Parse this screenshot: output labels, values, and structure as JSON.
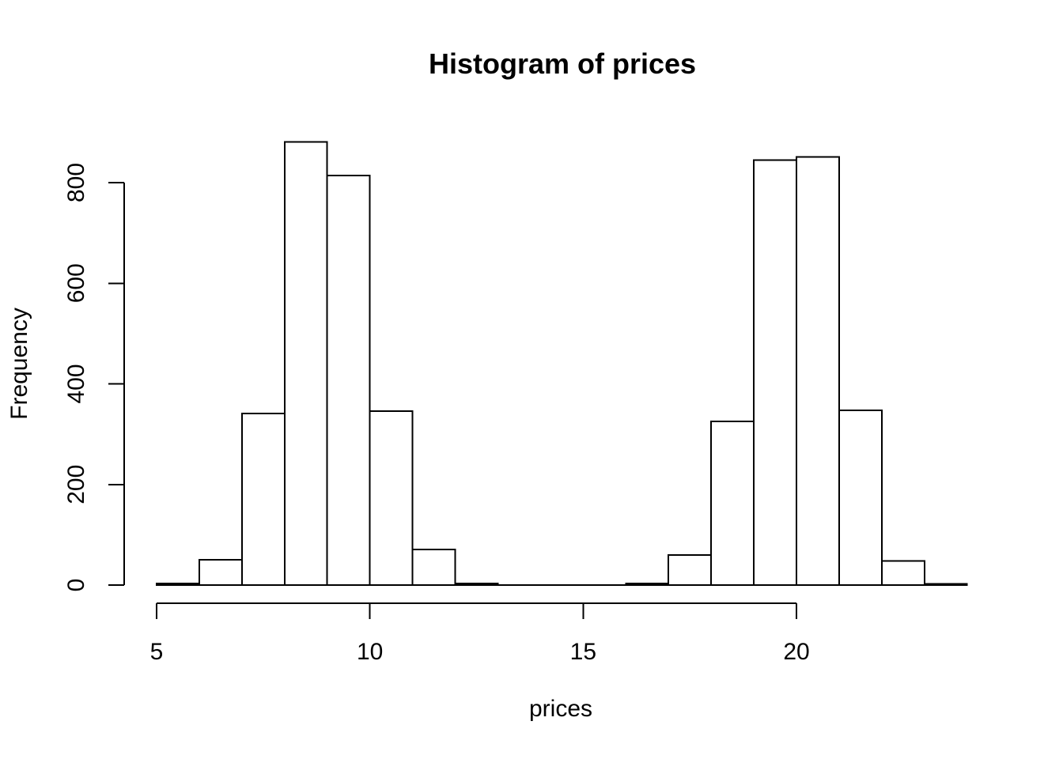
{
  "figure": {
    "background": "#ffffff",
    "foreground": "#000000"
  },
  "chart_data": {
    "type": "bar",
    "subtype": "histogram",
    "title": "Histogram of prices",
    "xlabel": "prices",
    "ylabel": "Frequency",
    "bar_fill": "#ffffff",
    "bar_stroke": "#000000",
    "grid": false,
    "legend_position": "none",
    "xlim": [
      5,
      24
    ],
    "ylim": [
      0,
      800
    ],
    "x_ticks": [
      5,
      10,
      15,
      20
    ],
    "y_ticks": [
      0,
      200,
      400,
      600,
      800
    ],
    "bin_width": 1,
    "bin_edges": [
      5,
      6,
      7,
      8,
      9,
      10,
      11,
      12,
      13,
      14,
      15,
      16,
      17,
      18,
      19,
      20,
      21,
      22,
      23,
      24
    ],
    "counts": [
      3,
      50,
      341,
      881,
      814,
      346,
      71,
      3,
      0,
      0,
      0,
      3,
      60,
      325,
      845,
      851,
      347,
      48,
      2
    ]
  }
}
